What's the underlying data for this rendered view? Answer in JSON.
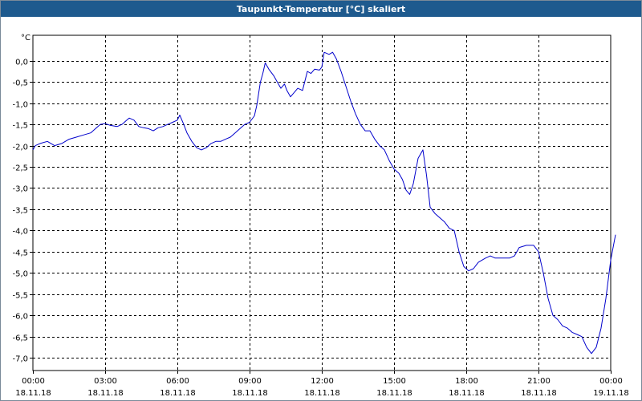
{
  "window": {
    "title": "Taupunkt-Temperatur [°C] skaliert"
  },
  "colors": {
    "titlebar": "#1e5a8e",
    "line": "#0000cc",
    "grid": "#000000"
  },
  "chart_data": {
    "type": "line",
    "title": "Taupunkt-Temperatur [°C] skaliert",
    "ylabel": "°C",
    "xlabel": "",
    "ylim": [
      -7.3,
      0.6
    ],
    "xlim": [
      0,
      24
    ],
    "grid": true,
    "legend": "none",
    "y_ticks": [
      {
        "v": 0.0,
        "label": "0,0"
      },
      {
        "v": -0.5,
        "label": "-0,5"
      },
      {
        "v": -1.0,
        "label": "-1,0"
      },
      {
        "v": -1.5,
        "label": "-1,5"
      },
      {
        "v": -2.0,
        "label": "-2,0"
      },
      {
        "v": -2.5,
        "label": "-2,5"
      },
      {
        "v": -3.0,
        "label": "-3,0"
      },
      {
        "v": -3.5,
        "label": "-3,5"
      },
      {
        "v": -4.0,
        "label": "-4,0"
      },
      {
        "v": -4.5,
        "label": "-4,5"
      },
      {
        "v": -5.0,
        "label": "-5,0"
      },
      {
        "v": -5.5,
        "label": "-5,5"
      },
      {
        "v": -6.0,
        "label": "-6,0"
      },
      {
        "v": -6.5,
        "label": "-6,5"
      },
      {
        "v": -7.0,
        "label": "-7,0"
      }
    ],
    "x_ticks": [
      {
        "v": 0,
        "time": "00:00",
        "date": "18.11.18"
      },
      {
        "v": 3,
        "time": "03:00",
        "date": "18.11.18"
      },
      {
        "v": 6,
        "time": "06:00",
        "date": "18.11.18"
      },
      {
        "v": 9,
        "time": "09:00",
        "date": "18.11.18"
      },
      {
        "v": 12,
        "time": "12:00",
        "date": "18.11.18"
      },
      {
        "v": 15,
        "time": "15:00",
        "date": "18.11.18"
      },
      {
        "v": 18,
        "time": "18:00",
        "date": "18.11.18"
      },
      {
        "v": 21,
        "time": "21:00",
        "date": "18.11.18"
      },
      {
        "v": 24,
        "time": "00:00",
        "date": "19.11.18"
      }
    ],
    "series": [
      {
        "points": [
          [
            0.0,
            -2.1
          ],
          [
            0.1,
            -2.0
          ],
          [
            0.3,
            -1.95
          ],
          [
            0.6,
            -1.9
          ],
          [
            0.9,
            -2.0
          ],
          [
            1.2,
            -1.95
          ],
          [
            1.5,
            -1.85
          ],
          [
            1.8,
            -1.8
          ],
          [
            2.1,
            -1.75
          ],
          [
            2.4,
            -1.7
          ],
          [
            2.6,
            -1.6
          ],
          [
            2.8,
            -1.5
          ],
          [
            3.0,
            -1.48
          ],
          [
            3.2,
            -1.52
          ],
          [
            3.5,
            -1.55
          ],
          [
            3.7,
            -1.5
          ],
          [
            3.9,
            -1.4
          ],
          [
            4.0,
            -1.35
          ],
          [
            4.2,
            -1.4
          ],
          [
            4.4,
            -1.55
          ],
          [
            4.6,
            -1.58
          ],
          [
            4.8,
            -1.6
          ],
          [
            5.0,
            -1.65
          ],
          [
            5.2,
            -1.58
          ],
          [
            5.4,
            -1.55
          ],
          [
            5.6,
            -1.5
          ],
          [
            5.8,
            -1.45
          ],
          [
            6.0,
            -1.4
          ],
          [
            6.1,
            -1.28
          ],
          [
            6.25,
            -1.48
          ],
          [
            6.4,
            -1.7
          ],
          [
            6.6,
            -1.9
          ],
          [
            6.8,
            -2.05
          ],
          [
            7.0,
            -2.1
          ],
          [
            7.2,
            -2.05
          ],
          [
            7.4,
            -1.95
          ],
          [
            7.6,
            -1.9
          ],
          [
            7.8,
            -1.9
          ],
          [
            8.0,
            -1.85
          ],
          [
            8.2,
            -1.8
          ],
          [
            8.4,
            -1.7
          ],
          [
            8.6,
            -1.6
          ],
          [
            8.8,
            -1.5
          ],
          [
            9.0,
            -1.45
          ],
          [
            9.2,
            -1.3
          ],
          [
            9.3,
            -1.05
          ],
          [
            9.45,
            -0.5
          ],
          [
            9.55,
            -0.3
          ],
          [
            9.65,
            -0.05
          ],
          [
            9.8,
            -0.2
          ],
          [
            10.0,
            -0.35
          ],
          [
            10.15,
            -0.5
          ],
          [
            10.3,
            -0.65
          ],
          [
            10.45,
            -0.55
          ],
          [
            10.55,
            -0.7
          ],
          [
            10.7,
            -0.85
          ],
          [
            10.85,
            -0.75
          ],
          [
            11.0,
            -0.65
          ],
          [
            11.2,
            -0.7
          ],
          [
            11.4,
            -0.25
          ],
          [
            11.55,
            -0.3
          ],
          [
            11.7,
            -0.2
          ],
          [
            11.9,
            -0.22
          ],
          [
            12.0,
            -0.15
          ],
          [
            12.1,
            0.2
          ],
          [
            12.3,
            0.15
          ],
          [
            12.45,
            0.2
          ],
          [
            12.6,
            0.05
          ],
          [
            12.8,
            -0.25
          ],
          [
            13.0,
            -0.6
          ],
          [
            13.2,
            -0.95
          ],
          [
            13.4,
            -1.25
          ],
          [
            13.6,
            -1.5
          ],
          [
            13.8,
            -1.65
          ],
          [
            14.0,
            -1.65
          ],
          [
            14.2,
            -1.85
          ],
          [
            14.4,
            -2.0
          ],
          [
            14.6,
            -2.1
          ],
          [
            14.8,
            -2.35
          ],
          [
            15.0,
            -2.55
          ],
          [
            15.2,
            -2.65
          ],
          [
            15.35,
            -2.8
          ],
          [
            15.5,
            -3.05
          ],
          [
            15.65,
            -3.15
          ],
          [
            15.8,
            -2.9
          ],
          [
            16.0,
            -2.3
          ],
          [
            16.2,
            -2.1
          ],
          [
            16.35,
            -2.7
          ],
          [
            16.5,
            -3.45
          ],
          [
            16.7,
            -3.6
          ],
          [
            16.9,
            -3.7
          ],
          [
            17.1,
            -3.8
          ],
          [
            17.3,
            -3.95
          ],
          [
            17.5,
            -4.0
          ],
          [
            17.7,
            -4.5
          ],
          [
            17.9,
            -4.85
          ],
          [
            18.1,
            -4.95
          ],
          [
            18.3,
            -4.9
          ],
          [
            18.5,
            -4.75
          ],
          [
            18.8,
            -4.65
          ],
          [
            19.0,
            -4.6
          ],
          [
            19.2,
            -4.65
          ],
          [
            19.5,
            -4.65
          ],
          [
            19.8,
            -4.65
          ],
          [
            20.0,
            -4.6
          ],
          [
            20.2,
            -4.4
          ],
          [
            20.5,
            -4.35
          ],
          [
            20.8,
            -4.35
          ],
          [
            21.0,
            -4.5
          ],
          [
            21.2,
            -5.0
          ],
          [
            21.4,
            -5.6
          ],
          [
            21.6,
            -6.0
          ],
          [
            21.8,
            -6.1
          ],
          [
            22.0,
            -6.25
          ],
          [
            22.2,
            -6.3
          ],
          [
            22.4,
            -6.4
          ],
          [
            22.6,
            -6.45
          ],
          [
            22.8,
            -6.5
          ],
          [
            23.0,
            -6.75
          ],
          [
            23.2,
            -6.9
          ],
          [
            23.4,
            -6.75
          ],
          [
            23.6,
            -6.3
          ],
          [
            23.8,
            -5.6
          ],
          [
            24.0,
            -4.7
          ],
          [
            24.2,
            -4.1
          ]
        ]
      }
    ]
  }
}
